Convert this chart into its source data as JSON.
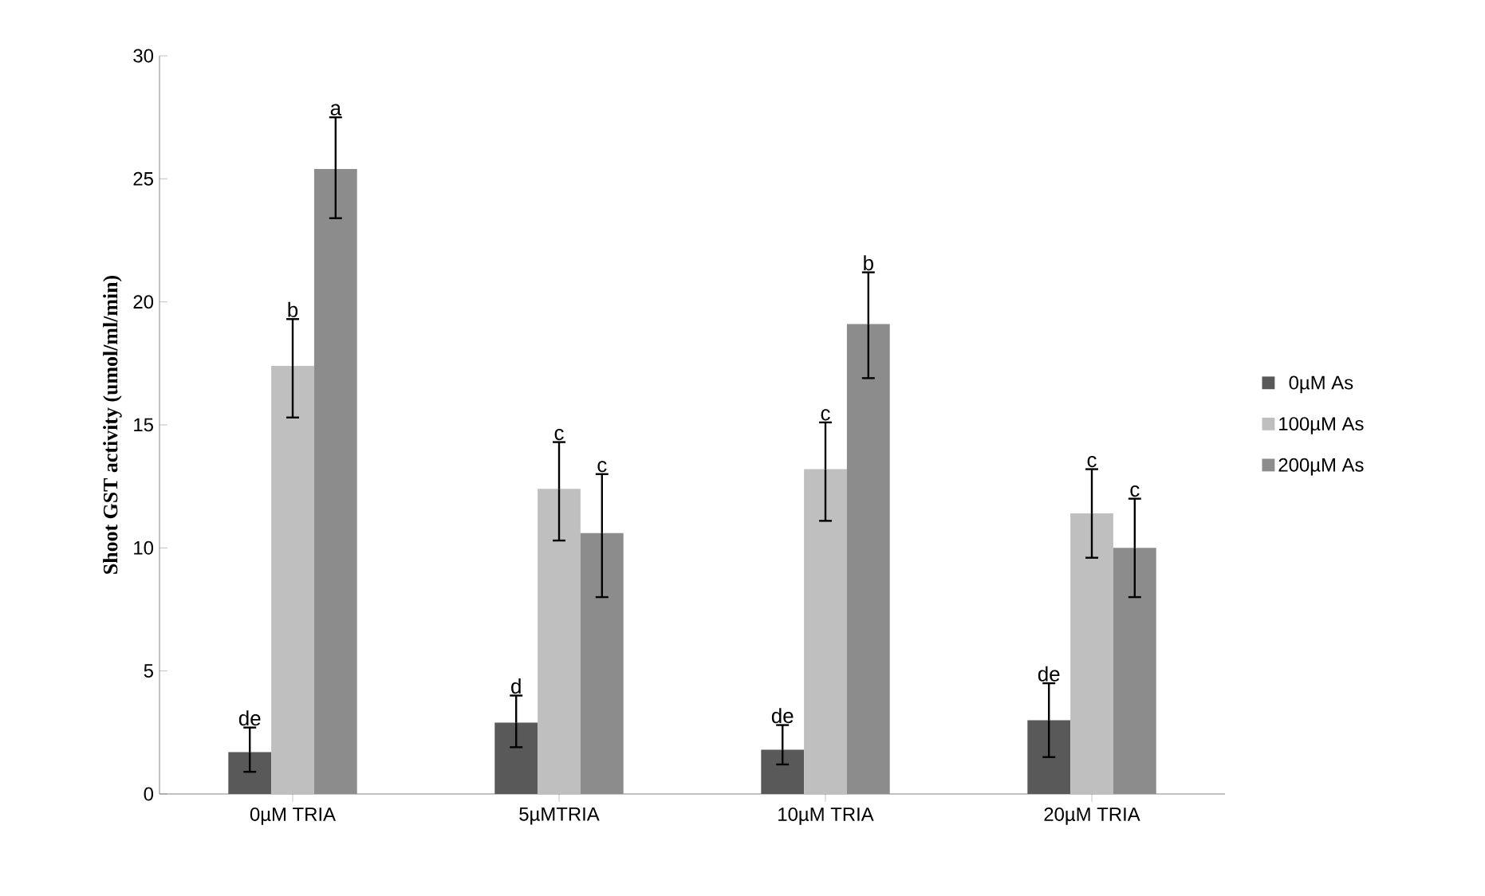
{
  "chart_data": {
    "type": "bar",
    "ylabel": "Shoot GST activity (umol/ml/min)",
    "categories": [
      "0µM TRIA",
      "5µMTRIA",
      "10µM TRIA",
      "20µM TRIA"
    ],
    "series": [
      {
        "name": "0µM As",
        "color": "#595959",
        "values": [
          1.7,
          2.9,
          1.8,
          3.0
        ],
        "errors": [
          [
            0.9,
            2.7
          ],
          [
            1.9,
            4.0
          ],
          [
            1.2,
            2.8
          ],
          [
            1.5,
            4.5
          ]
        ]
      },
      {
        "name": "100µM As",
        "color": "#bfbfbf",
        "values": [
          17.4,
          12.4,
          13.2,
          11.4
        ],
        "errors": [
          [
            15.3,
            19.3
          ],
          [
            10.3,
            14.3
          ],
          [
            11.1,
            15.1
          ],
          [
            9.6,
            13.2
          ]
        ]
      },
      {
        "name": "200µM As",
        "color": "#8c8c8c",
        "values": [
          25.4,
          10.6,
          19.1,
          10.0
        ],
        "errors": [
          [
            23.4,
            27.5
          ],
          [
            8.0,
            13.0
          ],
          [
            16.9,
            21.2
          ],
          [
            8.0,
            12.0
          ]
        ]
      }
    ],
    "ylim": [
      0,
      30
    ],
    "yticks": [
      0,
      5,
      10,
      15,
      20,
      25,
      30
    ],
    "grid": false,
    "legend": "right",
    "annotations": [
      "de",
      "b",
      "a",
      "d",
      "c",
      "c",
      "de",
      "c",
      "b",
      "de",
      "c",
      "c"
    ]
  }
}
